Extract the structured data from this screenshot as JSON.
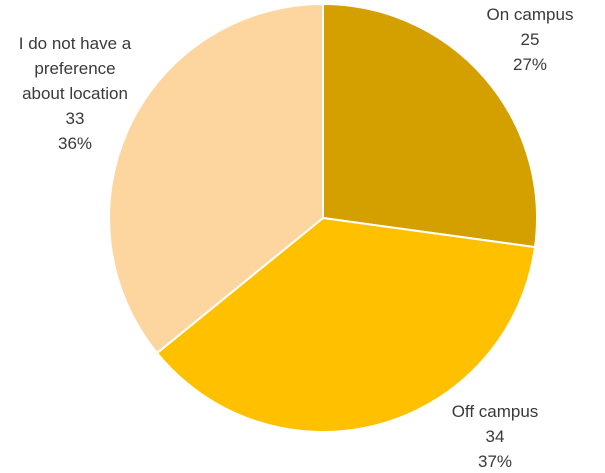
{
  "chart_data": {
    "type": "pie",
    "title": "",
    "start_angle_deg": 0,
    "direction": "clockwise",
    "legend": "none",
    "slices": [
      {
        "name_lines": [
          "On campus"
        ],
        "value": "25",
        "value_num": 25,
        "percent": "27%",
        "color": "#D4A000"
      },
      {
        "name_lines": [
          "Off campus"
        ],
        "value": "34",
        "value_num": 34,
        "percent": "37%",
        "color": "#FFC000"
      },
      {
        "name_lines": [
          "I do not have a",
          "preference",
          "about location"
        ],
        "value": "33",
        "value_num": 33,
        "percent": "36%",
        "color": "#FDD59E"
      }
    ]
  }
}
